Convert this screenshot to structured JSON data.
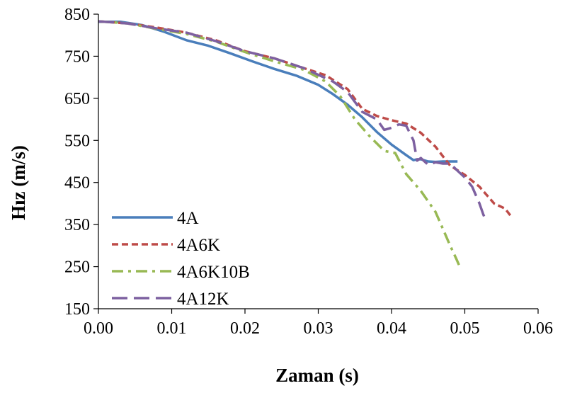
{
  "chart_data": {
    "type": "line",
    "xlabel": "Zaman (s)",
    "ylabel": "Hız (m/s)",
    "xlim": [
      0,
      0.06
    ],
    "ylim": [
      150,
      850
    ],
    "xticks": [
      0,
      0.01,
      0.02,
      0.03,
      0.04,
      0.05,
      0.06
    ],
    "xtick_labels": [
      "0.00",
      "0.01",
      "0.02",
      "0.03",
      "0.04",
      "0.05",
      "0.06"
    ],
    "yticks": [
      150,
      250,
      350,
      450,
      550,
      650,
      750,
      850
    ],
    "ytick_labels": [
      "150",
      "250",
      "350",
      "450",
      "550",
      "650",
      "750",
      "850"
    ],
    "grid": false,
    "legend_position": "bottom-left",
    "series": [
      {
        "name": "4A",
        "color": "#4a7ebb",
        "dash": "solid",
        "x": [
          0,
          0.003,
          0.006,
          0.009,
          0.012,
          0.015,
          0.018,
          0.021,
          0.024,
          0.027,
          0.03,
          0.032,
          0.034,
          0.036,
          0.038,
          0.04,
          0.042,
          0.043,
          0.0435,
          0.044,
          0.045,
          0.046,
          0.047,
          0.048,
          0.049
        ],
        "y": [
          832,
          832,
          824,
          808,
          788,
          775,
          757,
          738,
          720,
          704,
          682,
          660,
          635,
          605,
          570,
          540,
          515,
          503,
          505,
          505,
          500,
          499,
          500,
          500,
          500
        ]
      },
      {
        "name": "4A6K",
        "color": "#be4b48",
        "dash": "short-dash",
        "x": [
          0,
          0.004,
          0.008,
          0.012,
          0.016,
          0.02,
          0.024,
          0.028,
          0.031,
          0.034,
          0.036,
          0.038,
          0.04,
          0.042,
          0.044,
          0.046,
          0.048,
          0.05,
          0.052,
          0.054,
          0.0555,
          0.0562
        ],
        "y": [
          833,
          828,
          818,
          806,
          788,
          762,
          745,
          722,
          705,
          672,
          625,
          608,
          598,
          590,
          568,
          535,
          490,
          468,
          440,
          400,
          388,
          372
        ]
      },
      {
        "name": "4A6K10B",
        "color": "#98b954",
        "dash": "dash-dot",
        "x": [
          0,
          0.004,
          0.008,
          0.012,
          0.016,
          0.02,
          0.024,
          0.028,
          0.031,
          0.033,
          0.035,
          0.037,
          0.039,
          0.0405,
          0.042,
          0.044,
          0.046,
          0.047,
          0.048,
          0.0488,
          0.0493
        ],
        "y": [
          833,
          828,
          815,
          803,
          785,
          760,
          738,
          718,
          690,
          655,
          600,
          560,
          525,
          520,
          470,
          430,
          380,
          340,
          300,
          270,
          250
        ]
      },
      {
        "name": "4A12K",
        "color": "#7d60a0",
        "dash": "long-dash",
        "x": [
          0,
          0.004,
          0.008,
          0.012,
          0.016,
          0.02,
          0.024,
          0.028,
          0.032,
          0.034,
          0.036,
          0.038,
          0.039,
          0.04,
          0.041,
          0.042,
          0.043,
          0.0435,
          0.044,
          0.045,
          0.046,
          0.047,
          0.048,
          0.049,
          0.05,
          0.051,
          0.052,
          0.0525,
          0.0528
        ],
        "y": [
          833,
          828,
          816,
          806,
          786,
          762,
          745,
          722,
          690,
          665,
          618,
          600,
          575,
          580,
          588,
          585,
          550,
          502,
          508,
          492,
          498,
          495,
          495,
          478,
          462,
          440,
          400,
          375,
          362
        ]
      }
    ]
  }
}
